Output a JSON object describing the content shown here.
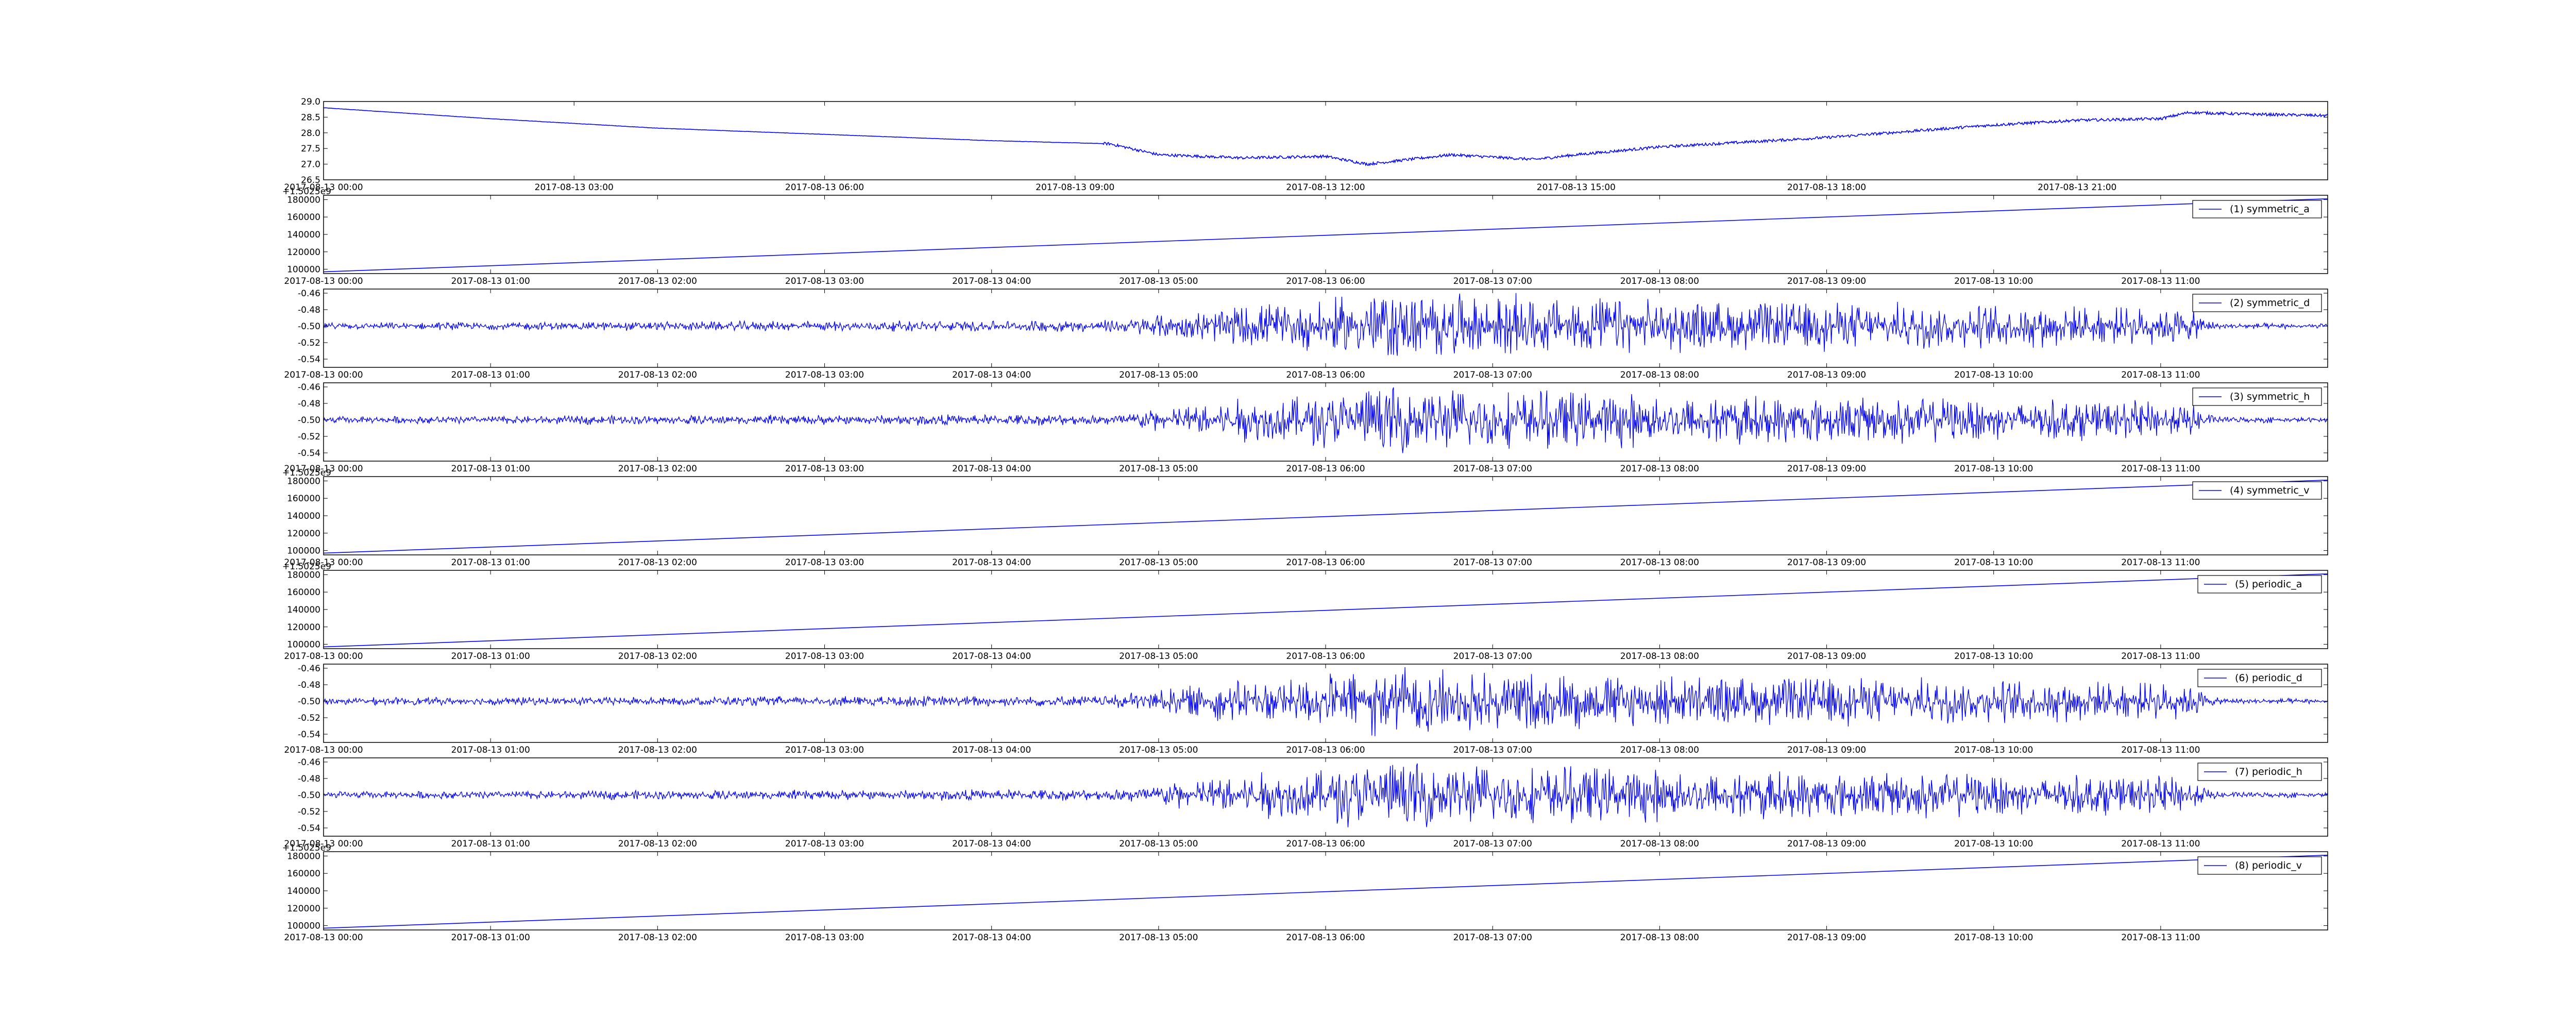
{
  "chart_data": [
    {
      "type": "line",
      "title": "",
      "xlabel": "",
      "ylabel": "",
      "xlim": [
        "2017-08-13 00:00",
        "2017-08-14 00:00"
      ],
      "ylim": [
        26.5,
        29.0
      ],
      "yticks": [
        "26.5",
        "27.0",
        "27.5",
        "28.0",
        "28.5",
        "29.0"
      ],
      "xticks": [
        "2017-08-13 00:00",
        "2017-08-13 03:00",
        "2017-08-13 06:00",
        "2017-08-13 09:00",
        "2017-08-13 12:00",
        "2017-08-13 15:00",
        "2017-08-13 18:00",
        "2017-08-13 21:00"
      ],
      "offset_text": "",
      "legend": null,
      "series": [
        {
          "color": "#0000ff",
          "x": [
            "2017-08-13 00:00",
            "2017-08-13 02:00",
            "2017-08-13 04:00",
            "2017-08-13 06:00",
            "2017-08-13 08:00",
            "2017-08-13 09:25",
            "2017-08-13 10:00",
            "2017-08-13 11:00",
            "2017-08-13 12:00",
            "2017-08-13 12:30",
            "2017-08-13 13:30",
            "2017-08-13 14:30",
            "2017-08-13 15:00",
            "2017-08-13 16:00",
            "2017-08-13 17:00",
            "2017-08-13 18:00",
            "2017-08-13 19:00",
            "2017-08-13 20:00",
            "2017-08-13 21:00",
            "2017-08-13 22:00",
            "2017-08-13 22:20",
            "2017-08-13 23:00",
            "2017-08-14 00:00"
          ],
          "values": [
            28.8,
            28.45,
            28.15,
            27.95,
            27.75,
            27.65,
            27.3,
            27.2,
            27.25,
            27.0,
            27.3,
            27.15,
            27.3,
            27.55,
            27.7,
            27.85,
            28.05,
            28.25,
            28.4,
            28.45,
            28.65,
            28.6,
            28.55
          ]
        }
      ]
    },
    {
      "type": "line",
      "xlim": [
        "2017-08-13 00:00",
        "2017-08-13 12:00"
      ],
      "ylim": [
        95000,
        185000
      ],
      "yticks": [
        "100000",
        "120000",
        "140000",
        "160000",
        "180000"
      ],
      "xticks": [
        "2017-08-13 00:00",
        "2017-08-13 01:00",
        "2017-08-13 02:00",
        "2017-08-13 03:00",
        "2017-08-13 04:00",
        "2017-08-13 05:00",
        "2017-08-13 06:00",
        "2017-08-13 07:00",
        "2017-08-13 08:00",
        "2017-08-13 09:00",
        "2017-08-13 10:00",
        "2017-08-13 11:00"
      ],
      "offset_text": "+1.5025e9",
      "legend": "(1) symmetric_a",
      "series": [
        {
          "color": "#0000ff",
          "x": [
            "2017-08-13 00:00",
            "2017-08-13 12:00"
          ],
          "values": [
            97000,
            181000
          ]
        }
      ]
    },
    {
      "type": "line",
      "xlim": [
        "2017-08-13 00:00",
        "2017-08-13 12:00"
      ],
      "ylim": [
        -0.55,
        -0.455
      ],
      "yticks": [
        "-0.54",
        "-0.52",
        "-0.50",
        "-0.48",
        "-0.46"
      ],
      "xticks": [
        "2017-08-13 00:00",
        "2017-08-13 01:00",
        "2017-08-13 02:00",
        "2017-08-13 03:00",
        "2017-08-13 04:00",
        "2017-08-13 05:00",
        "2017-08-13 06:00",
        "2017-08-13 07:00",
        "2017-08-13 08:00",
        "2017-08-13 09:00",
        "2017-08-13 10:00",
        "2017-08-13 11:00"
      ],
      "offset_text": "",
      "legend": "(2) symmetric_d",
      "series": [
        {
          "color": "#0000ff",
          "baseline": -0.5,
          "amplitude_envelope": {
            "x": [
              "2017-08-13 00:00",
              "2017-08-13 04:40",
              "2017-08-13 05:30",
              "2017-08-13 06:00",
              "2017-08-13 06:20",
              "2017-08-13 07:00",
              "2017-08-13 07:30",
              "2017-08-13 08:00",
              "2017-08-13 09:00",
              "2017-08-13 10:00",
              "2017-08-13 11:10",
              "2017-08-13 11:20",
              "2017-08-13 12:00"
            ],
            "values": [
              0.003,
              0.005,
              0.018,
              0.022,
              0.03,
              0.026,
              0.024,
              0.022,
              0.02,
              0.018,
              0.015,
              0.003,
              0.002
            ]
          }
        }
      ]
    },
    {
      "type": "line",
      "xlim": [
        "2017-08-13 00:00",
        "2017-08-13 12:00"
      ],
      "ylim": [
        -0.55,
        -0.455
      ],
      "yticks": [
        "-0.54",
        "-0.52",
        "-0.50",
        "-0.48",
        "-0.46"
      ],
      "xticks": [
        "2017-08-13 00:00",
        "2017-08-13 01:00",
        "2017-08-13 02:00",
        "2017-08-13 03:00",
        "2017-08-13 04:00",
        "2017-08-13 05:00",
        "2017-08-13 06:00",
        "2017-08-13 07:00",
        "2017-08-13 08:00",
        "2017-08-13 09:00",
        "2017-08-13 10:00",
        "2017-08-13 11:00"
      ],
      "offset_text": "",
      "legend": "(3) symmetric_h",
      "series": [
        {
          "color": "#0000ff",
          "baseline": -0.5,
          "amplitude_envelope": {
            "x": [
              "2017-08-13 00:00",
              "2017-08-13 04:40",
              "2017-08-13 05:30",
              "2017-08-13 06:00",
              "2017-08-13 06:20",
              "2017-08-13 07:00",
              "2017-08-13 07:30",
              "2017-08-13 08:00",
              "2017-08-13 09:00",
              "2017-08-13 10:00",
              "2017-08-13 11:10",
              "2017-08-13 11:20",
              "2017-08-13 12:00"
            ],
            "values": [
              0.003,
              0.005,
              0.018,
              0.022,
              0.03,
              0.026,
              0.024,
              0.022,
              0.02,
              0.018,
              0.015,
              0.003,
              0.002
            ]
          }
        }
      ]
    },
    {
      "type": "line",
      "xlim": [
        "2017-08-13 00:00",
        "2017-08-13 12:00"
      ],
      "ylim": [
        95000,
        185000
      ],
      "yticks": [
        "100000",
        "120000",
        "140000",
        "160000",
        "180000"
      ],
      "xticks": [
        "2017-08-13 00:00",
        "2017-08-13 01:00",
        "2017-08-13 02:00",
        "2017-08-13 03:00",
        "2017-08-13 04:00",
        "2017-08-13 05:00",
        "2017-08-13 06:00",
        "2017-08-13 07:00",
        "2017-08-13 08:00",
        "2017-08-13 09:00",
        "2017-08-13 10:00",
        "2017-08-13 11:00"
      ],
      "offset_text": "+1.5025e9",
      "legend": "(4) symmetric_v",
      "series": [
        {
          "color": "#0000ff",
          "x": [
            "2017-08-13 00:00",
            "2017-08-13 12:00"
          ],
          "values": [
            97000,
            181000
          ]
        }
      ]
    },
    {
      "type": "line",
      "xlim": [
        "2017-08-13 00:00",
        "2017-08-13 12:00"
      ],
      "ylim": [
        95000,
        185000
      ],
      "yticks": [
        "100000",
        "120000",
        "140000",
        "160000",
        "180000"
      ],
      "xticks": [
        "2017-08-13 00:00",
        "2017-08-13 01:00",
        "2017-08-13 02:00",
        "2017-08-13 03:00",
        "2017-08-13 04:00",
        "2017-08-13 05:00",
        "2017-08-13 06:00",
        "2017-08-13 07:00",
        "2017-08-13 08:00",
        "2017-08-13 09:00",
        "2017-08-13 10:00",
        "2017-08-13 11:00"
      ],
      "offset_text": "+1.5025e9",
      "legend": "(5) periodic_a",
      "series": [
        {
          "color": "#0000ff",
          "x": [
            "2017-08-13 00:00",
            "2017-08-13 12:00"
          ],
          "values": [
            97000,
            181000
          ]
        }
      ]
    },
    {
      "type": "line",
      "xlim": [
        "2017-08-13 00:00",
        "2017-08-13 12:00"
      ],
      "ylim": [
        -0.55,
        -0.455
      ],
      "yticks": [
        "-0.54",
        "-0.52",
        "-0.50",
        "-0.48",
        "-0.46"
      ],
      "xticks": [
        "2017-08-13 00:00",
        "2017-08-13 01:00",
        "2017-08-13 02:00",
        "2017-08-13 03:00",
        "2017-08-13 04:00",
        "2017-08-13 05:00",
        "2017-08-13 06:00",
        "2017-08-13 07:00",
        "2017-08-13 08:00",
        "2017-08-13 09:00",
        "2017-08-13 10:00",
        "2017-08-13 11:00"
      ],
      "offset_text": "",
      "legend": "(6) periodic_d",
      "series": [
        {
          "color": "#0000ff",
          "baseline": -0.5,
          "amplitude_envelope": {
            "x": [
              "2017-08-13 00:00",
              "2017-08-13 04:40",
              "2017-08-13 05:30",
              "2017-08-13 06:00",
              "2017-08-13 06:20",
              "2017-08-13 07:00",
              "2017-08-13 07:30",
              "2017-08-13 08:00",
              "2017-08-13 09:00",
              "2017-08-13 10:00",
              "2017-08-13 11:10",
              "2017-08-13 11:20",
              "2017-08-13 12:00"
            ],
            "values": [
              0.003,
              0.005,
              0.018,
              0.022,
              0.03,
              0.026,
              0.024,
              0.022,
              0.02,
              0.018,
              0.015,
              0.003,
              0.002
            ]
          }
        }
      ]
    },
    {
      "type": "line",
      "xlim": [
        "2017-08-13 00:00",
        "2017-08-13 12:00"
      ],
      "ylim": [
        -0.55,
        -0.455
      ],
      "yticks": [
        "-0.54",
        "-0.52",
        "-0.50",
        "-0.48",
        "-0.46"
      ],
      "xticks": [
        "2017-08-13 00:00",
        "2017-08-13 01:00",
        "2017-08-13 02:00",
        "2017-08-13 03:00",
        "2017-08-13 04:00",
        "2017-08-13 05:00",
        "2017-08-13 06:00",
        "2017-08-13 07:00",
        "2017-08-13 08:00",
        "2017-08-13 09:00",
        "2017-08-13 10:00",
        "2017-08-13 11:00"
      ],
      "offset_text": "",
      "legend": "(7) periodic_h",
      "series": [
        {
          "color": "#0000ff",
          "baseline": -0.5,
          "amplitude_envelope": {
            "x": [
              "2017-08-13 00:00",
              "2017-08-13 04:40",
              "2017-08-13 05:30",
              "2017-08-13 06:00",
              "2017-08-13 06:20",
              "2017-08-13 07:00",
              "2017-08-13 07:30",
              "2017-08-13 08:00",
              "2017-08-13 09:00",
              "2017-08-13 10:00",
              "2017-08-13 11:10",
              "2017-08-13 11:20",
              "2017-08-13 12:00"
            ],
            "values": [
              0.003,
              0.005,
              0.018,
              0.022,
              0.03,
              0.026,
              0.024,
              0.022,
              0.02,
              0.018,
              0.015,
              0.003,
              0.002
            ]
          }
        }
      ]
    },
    {
      "type": "line",
      "xlim": [
        "2017-08-13 00:00",
        "2017-08-13 12:00"
      ],
      "ylim": [
        95000,
        185000
      ],
      "yticks": [
        "100000",
        "120000",
        "140000",
        "160000",
        "180000"
      ],
      "xticks": [
        "2017-08-13 00:00",
        "2017-08-13 01:00",
        "2017-08-13 02:00",
        "2017-08-13 03:00",
        "2017-08-13 04:00",
        "2017-08-13 05:00",
        "2017-08-13 06:00",
        "2017-08-13 07:00",
        "2017-08-13 08:00",
        "2017-08-13 09:00",
        "2017-08-13 10:00",
        "2017-08-13 11:00"
      ],
      "offset_text": "+1.5025e9",
      "legend": "(8) periodic_v",
      "series": [
        {
          "color": "#0000ff",
          "x": [
            "2017-08-13 00:00",
            "2017-08-13 12:00"
          ],
          "values": [
            97000,
            181000
          ]
        }
      ]
    }
  ]
}
